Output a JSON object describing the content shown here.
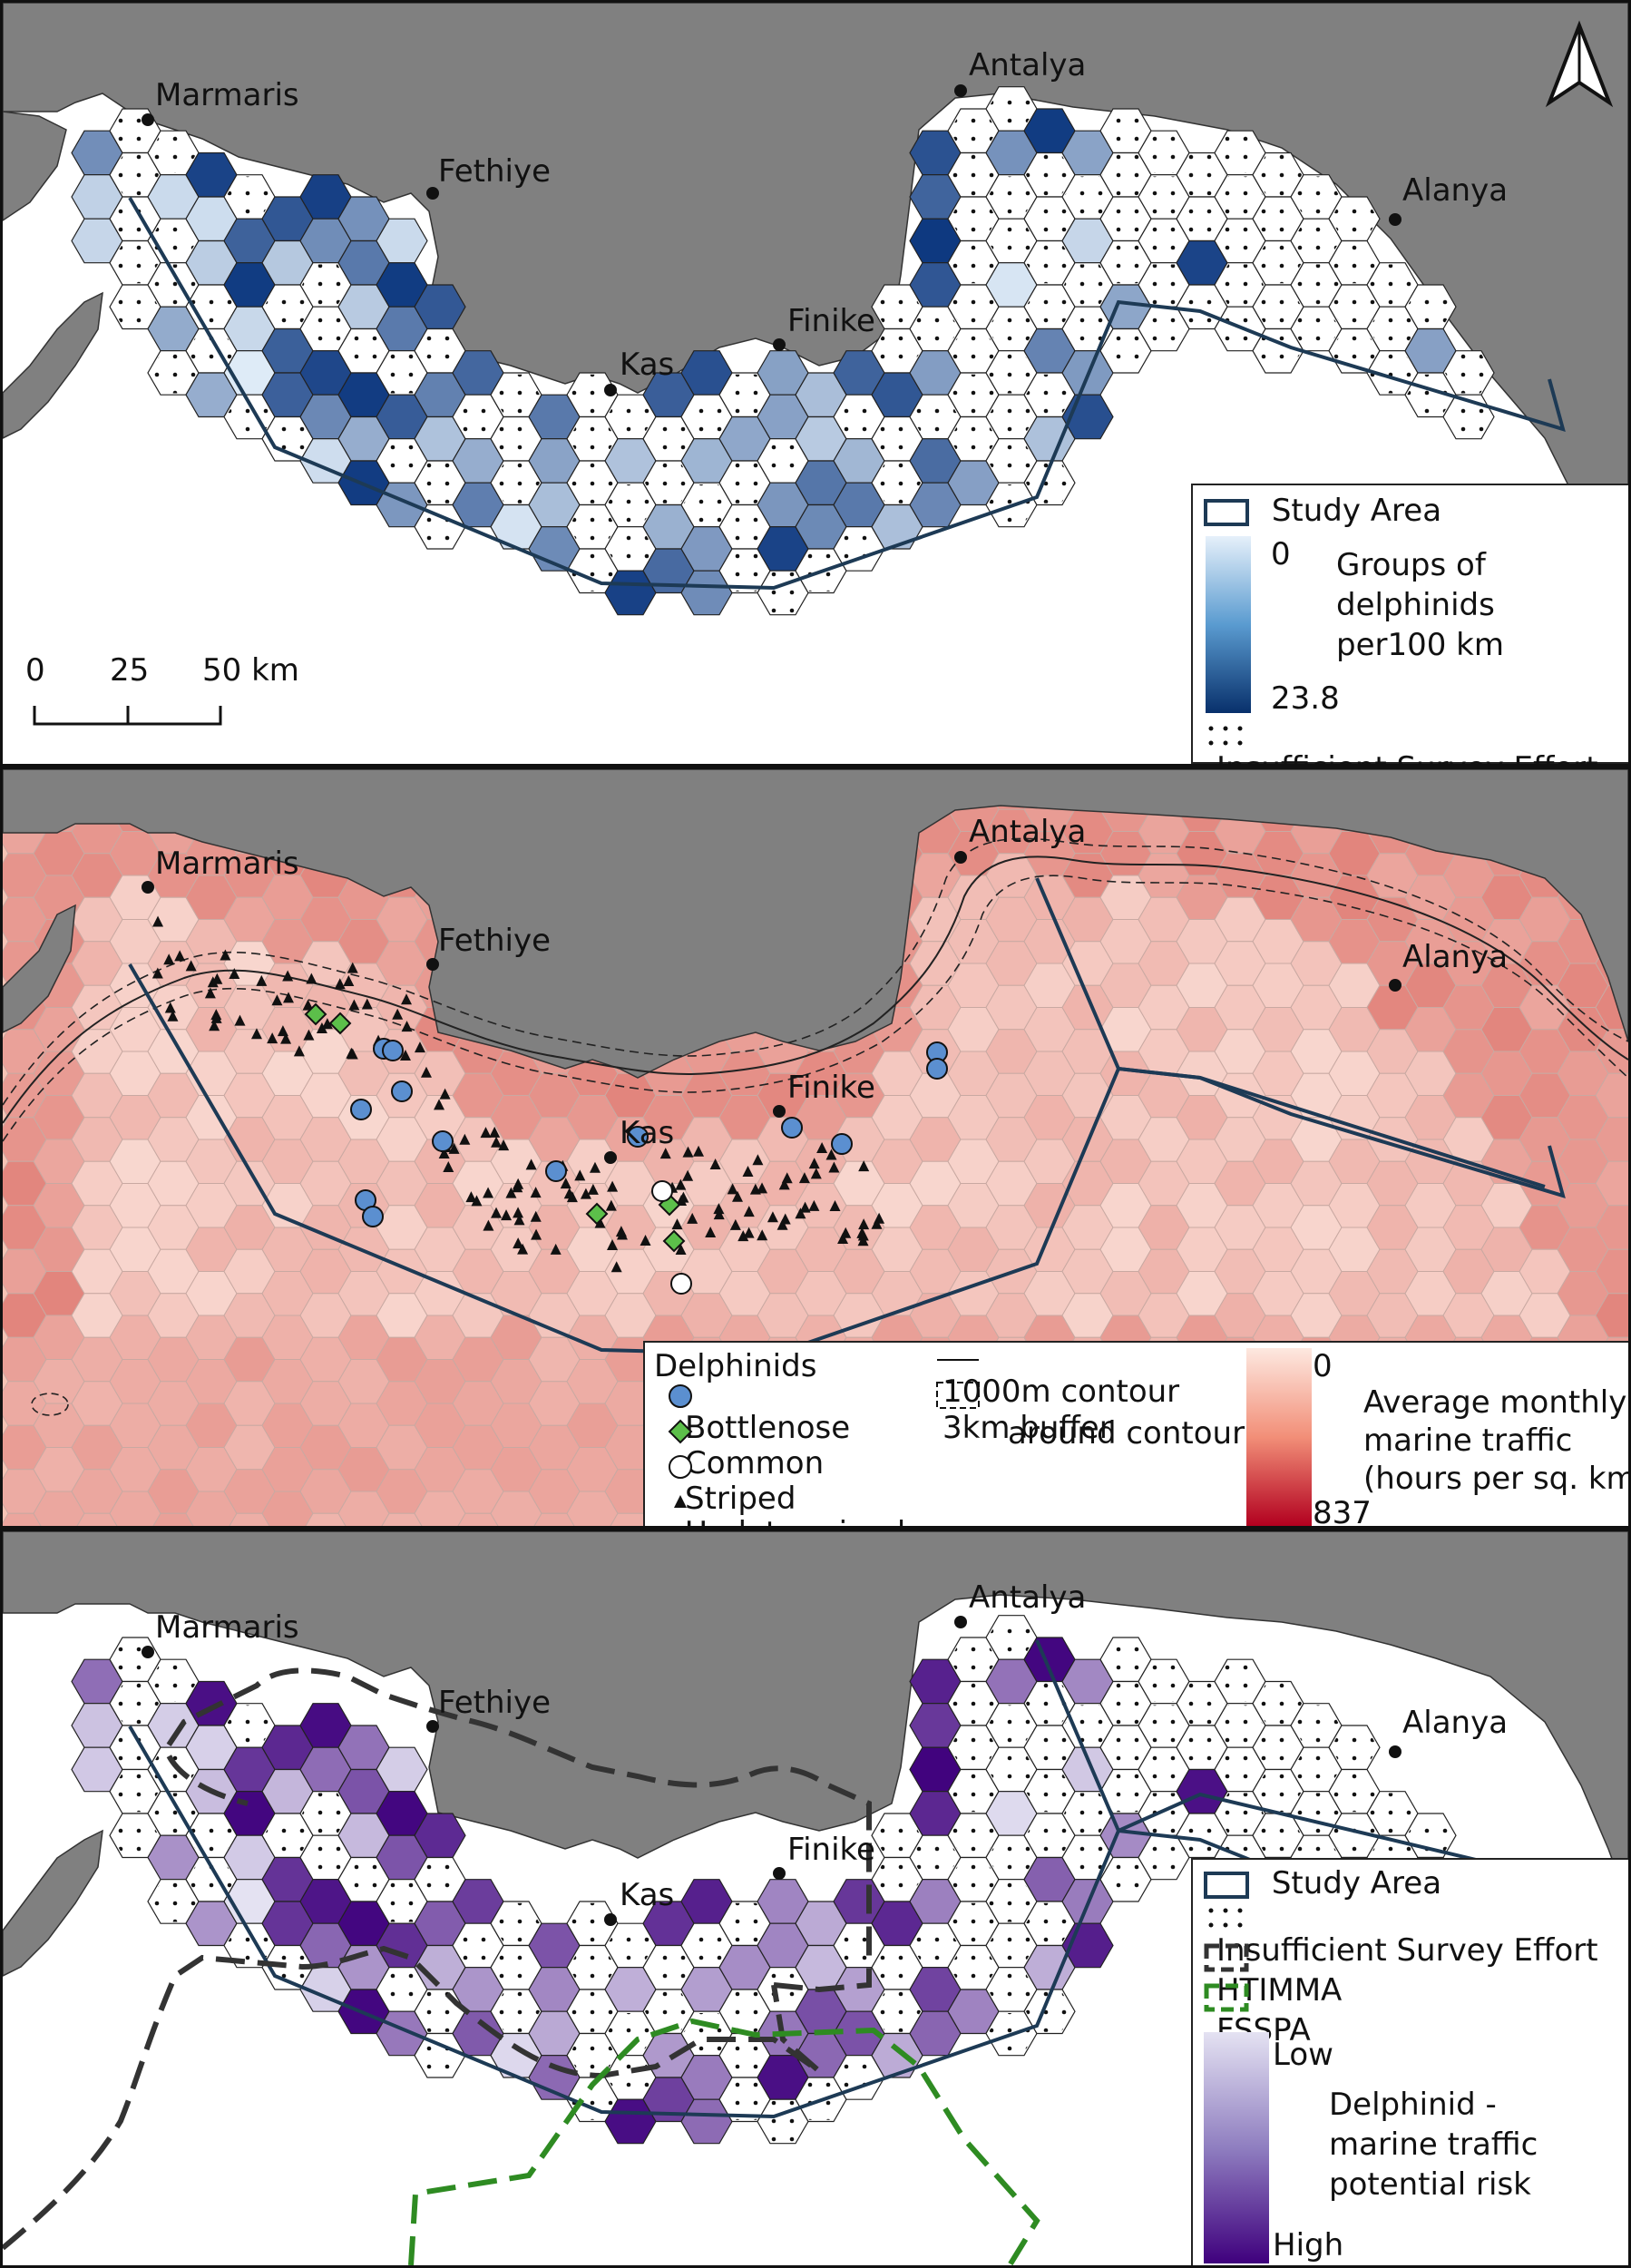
{
  "cities": {
    "marmaris": "Marmaris",
    "fethiye": "Fethiye",
    "kas": "Kas",
    "finike": "Finike",
    "antalya": "Antalya",
    "alanya": "Alanya"
  },
  "panel1": {
    "legend": {
      "study_area": "Study Area",
      "ramp_min": "0",
      "ramp_max": "23.8",
      "ramp_title_1": "Groups of",
      "ramp_title_2": "delphinids",
      "ramp_title_3": "per100 km",
      "insufficient": "Insufficient Survey Effort"
    },
    "scalebar": {
      "t0": "0",
      "t1": "25",
      "t2": "50 km"
    },
    "colors": {
      "low": "#deebf7",
      "high": "#08306b"
    }
  },
  "panel2": {
    "legend": {
      "group_title": "Delphinids",
      "bottlenose": "Bottlenose",
      "common": "Common",
      "striped": "Striped",
      "undetermined": "Undetermined",
      "contour": "1000m contour",
      "buffer_1": "3km buffer",
      "buffer_2": "around contour",
      "ramp_min": "0",
      "ramp_max": "837",
      "ramp_title_1": "Average monthly",
      "ramp_title_2": "marine traffic",
      "ramp_title_3": "(hours per sq. km)"
    },
    "colors": {
      "bottlenose": "#5b8fd0",
      "common": "#5cbf4a",
      "low": "#fde8e0",
      "high": "#b2001f"
    }
  },
  "panel3": {
    "legend": {
      "study_area": "Study Area",
      "insufficient": "Insufficient Survey Effort",
      "htimma": "HTIMMA",
      "fsspa": "FSSPA",
      "ramp_low": "Low",
      "ramp_high": "High",
      "ramp_title_1": "Delphinid -",
      "ramp_title_2": "marine traffic",
      "ramp_title_3": "potential risk"
    },
    "colors": {
      "low": "#e4e2f2",
      "high": "#3f007d",
      "fsspa": "#2e8b22",
      "htimma": "#333333"
    }
  }
}
